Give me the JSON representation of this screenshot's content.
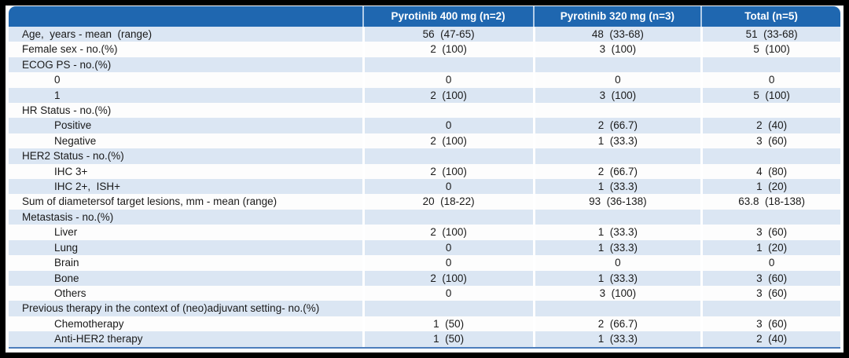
{
  "colors": {
    "header_bg": "#1f67b0",
    "header_text": "#ffffff",
    "row_shade": "#dbe6f3",
    "bottom_rule": "#4d7ebc",
    "frame_border": "#000000",
    "body_text": "#1a1a1a"
  },
  "table": {
    "columns": [
      "",
      "Pyrotinib 400 mg (n=2)",
      "Pyrotinib 320 mg (n=3)",
      "Total (n=5)"
    ],
    "rows": [
      {
        "label": "Age,  years - mean  (range)",
        "indent": 0,
        "values": [
          "56  (47-65)",
          "48  (33-68)",
          "51  (33-68)"
        ]
      },
      {
        "label": "Female sex - no.(%)",
        "indent": 0,
        "values": [
          "2  (100)",
          "3  (100)",
          "5  (100)"
        ]
      },
      {
        "label": "ECOG PS - no.(%)",
        "indent": 0,
        "values": [
          "",
          "",
          ""
        ]
      },
      {
        "label": "0",
        "indent": 1,
        "values": [
          "0",
          "0",
          "0"
        ]
      },
      {
        "label": "1",
        "indent": 1,
        "values": [
          "2  (100)",
          "3  (100)",
          "5  (100)"
        ]
      },
      {
        "label": "HR Status - no.(%)",
        "indent": 0,
        "values": [
          "",
          "",
          ""
        ]
      },
      {
        "label": "Positive",
        "indent": 1,
        "values": [
          "0",
          "2  (66.7)",
          "2  (40)"
        ]
      },
      {
        "label": "Negative",
        "indent": 1,
        "values": [
          "2  (100)",
          "1  (33.3)",
          "3  (60)"
        ]
      },
      {
        "label": "HER2 Status - no.(%)",
        "indent": 0,
        "values": [
          "",
          "",
          ""
        ]
      },
      {
        "label": "IHC 3+",
        "indent": 1,
        "values": [
          "2  (100)",
          "2  (66.7)",
          "4  (80)"
        ]
      },
      {
        "label": "IHC 2+,  ISH+",
        "indent": 1,
        "values": [
          "0",
          "1  (33.3)",
          "1  (20)"
        ]
      },
      {
        "label": "Sum of diametersof target lesions, mm - mean (range)",
        "indent": 0,
        "values": [
          "20  (18-22)",
          "93  (36-138)",
          "63.8  (18-138)"
        ]
      },
      {
        "label": "Metastasis - no.(%)",
        "indent": 0,
        "values": [
          "",
          "",
          ""
        ]
      },
      {
        "label": "Liver",
        "indent": 1,
        "values": [
          "2  (100)",
          "1  (33.3)",
          "3  (60)"
        ]
      },
      {
        "label": "Lung",
        "indent": 1,
        "values": [
          "0",
          "1  (33.3)",
          "1  (20)"
        ]
      },
      {
        "label": "Brain",
        "indent": 1,
        "values": [
          "0",
          "0",
          "0"
        ]
      },
      {
        "label": "Bone",
        "indent": 1,
        "values": [
          "2  (100)",
          "1  (33.3)",
          "3  (60)"
        ]
      },
      {
        "label": "Others",
        "indent": 1,
        "values": [
          "0",
          "3  (100)",
          "3  (60)"
        ]
      },
      {
        "label": "Previous therapy in the context of (neo)adjuvant setting- no.(%)",
        "indent": 0,
        "values": [
          "",
          "",
          ""
        ]
      },
      {
        "label": "Chemotherapy",
        "indent": 1,
        "values": [
          "1  (50)",
          "2  (66.7)",
          "3  (60)"
        ]
      },
      {
        "label": "Anti-HER2 therapy",
        "indent": 1,
        "values": [
          "1  (50)",
          "1  (33.3)",
          "2  (40)"
        ]
      }
    ]
  }
}
